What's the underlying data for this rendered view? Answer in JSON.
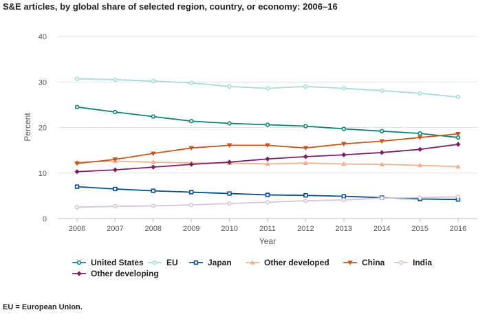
{
  "chart_data": {
    "type": "line",
    "title": "S&E articles, by global share of selected region, country, or economy: 2006–16",
    "xlabel": "Year",
    "ylabel": "Percent",
    "ylim": [
      0,
      40
    ],
    "yticks": [
      "0",
      "10",
      "20",
      "30",
      "40"
    ],
    "categories": [
      "2006",
      "2007",
      "2008",
      "2009",
      "2010",
      "2011",
      "2012",
      "2013",
      "2014",
      "2015",
      "2016"
    ],
    "series": [
      {
        "name": "United States",
        "color": "#0e8276",
        "marker": "circle",
        "values": [
          24.5,
          23.4,
          22.4,
          21.4,
          20.9,
          20.6,
          20.3,
          19.7,
          19.2,
          18.7,
          17.8
        ]
      },
      {
        "name": "EU",
        "color": "#a8dcd6",
        "marker": "circle",
        "values": [
          30.7,
          30.5,
          30.2,
          29.8,
          29.0,
          28.6,
          29.0,
          28.6,
          28.1,
          27.5,
          26.7
        ]
      },
      {
        "name": "Japan",
        "color": "#0e4f8e",
        "marker": "square",
        "values": [
          7.0,
          6.5,
          6.1,
          5.8,
          5.5,
          5.2,
          5.1,
          4.9,
          4.6,
          4.3,
          4.2
        ]
      },
      {
        "name": "Other developed",
        "color": "#f0b190",
        "marker": "triangle-up",
        "values": [
          12.4,
          12.6,
          12.4,
          12.2,
          12.2,
          12.0,
          12.2,
          12.0,
          11.9,
          11.7,
          11.4
        ]
      },
      {
        "name": "China",
        "color": "#c1571a",
        "marker": "triangle-down",
        "values": [
          12.1,
          13.0,
          14.3,
          15.5,
          16.1,
          16.1,
          15.5,
          16.4,
          17.0,
          17.8,
          18.6
        ]
      },
      {
        "name": "India",
        "color": "#d8c4d6",
        "marker": "circle",
        "values": [
          2.5,
          2.7,
          2.8,
          3.0,
          3.3,
          3.6,
          3.9,
          4.1,
          4.5,
          4.6,
          4.8
        ]
      },
      {
        "name": "Other developing",
        "color": "#7a2161",
        "marker": "diamond",
        "values": [
          10.3,
          10.7,
          11.3,
          11.9,
          12.4,
          13.1,
          13.6,
          14.0,
          14.5,
          15.2,
          16.3
        ]
      }
    ]
  },
  "footnote": "EU = European Union."
}
